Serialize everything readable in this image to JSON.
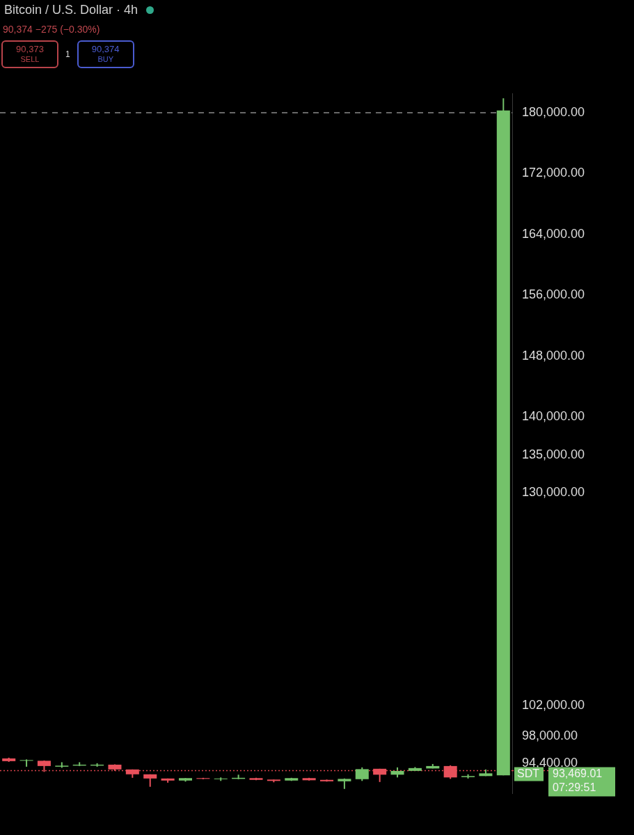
{
  "chart_data": {
    "type": "candlestick",
    "title": "Bitcoin / U.S. Dollar · 4h",
    "subtitle": "90,374 −275 (−0.30%)",
    "categories": [
      null,
      null,
      null,
      null,
      null,
      null,
      null,
      null,
      null,
      null,
      null,
      null,
      null,
      null,
      null,
      null,
      null,
      null,
      null,
      null,
      null,
      null,
      null,
      null,
      null,
      null,
      null,
      null,
      null
    ],
    "ohlc": [
      [
        95080,
        95180,
        94630,
        94720
      ],
      [
        94770,
        94950,
        93990,
        94860
      ],
      [
        94770,
        94810,
        93310,
        94080
      ],
      [
        93990,
        94580,
        93850,
        94130
      ],
      [
        94130,
        94580,
        94080,
        94260
      ],
      [
        94130,
        94450,
        93990,
        94260
      ],
      [
        94260,
        94300,
        93440,
        93630
      ],
      [
        93630,
        93630,
        92530,
        92990
      ],
      [
        92990,
        92990,
        91350,
        92440
      ],
      [
        92440,
        92440,
        91890,
        92170
      ],
      [
        92170,
        92490,
        92030,
        92490
      ],
      [
        92490,
        92530,
        92350,
        92390
      ],
      [
        92350,
        92580,
        92120,
        92440
      ],
      [
        92390,
        92940,
        92350,
        92530
      ],
      [
        92490,
        92530,
        92210,
        92260
      ],
      [
        92300,
        92300,
        91940,
        92120
      ],
      [
        92170,
        92530,
        92120,
        92490
      ],
      [
        92490,
        92530,
        92170,
        92210
      ],
      [
        92260,
        92300,
        92030,
        92070
      ],
      [
        92070,
        92440,
        91070,
        92390
      ],
      [
        92350,
        93900,
        92120,
        93670
      ],
      [
        93720,
        93720,
        91980,
        92940
      ],
      [
        92940,
        93900,
        92580,
        93440
      ],
      [
        93440,
        93940,
        93440,
        93810
      ],
      [
        93760,
        94350,
        93760,
        94080
      ],
      [
        94080,
        94170,
        92390,
        92580
      ],
      [
        92620,
        92990,
        92440,
        92760
      ],
      [
        92760,
        93630,
        92760,
        93120
      ],
      [
        92850,
        181900,
        92850,
        180300
      ]
    ],
    "colors": [
      "#e8505b",
      "#74c26a",
      "#e8505b",
      "#74c26a",
      "#74c26a",
      "#74c26a",
      "#e8505b",
      "#e8505b",
      "#e8505b",
      "#e8505b",
      "#74c26a",
      "#e8505b",
      "#74c26a",
      "#74c26a",
      "#e8505b",
      "#e8505b",
      "#74c26a",
      "#e8505b",
      "#e8505b",
      "#74c26a",
      "#74c26a",
      "#e8505b",
      "#74c26a",
      "#74c26a",
      "#74c26a",
      "#e8505b",
      "#74c26a",
      "#74c26a",
      "#74c26a"
    ],
    "ylim": [
      90500,
      182500
    ],
    "yticks": [
      {
        "value": 94400,
        "label": "94,400.00"
      },
      {
        "value": 98000,
        "label": "98,000.00"
      },
      {
        "value": 102000,
        "label": "102,000.00"
      },
      {
        "value": 130000,
        "label": "130,000.00"
      },
      {
        "value": 135000,
        "label": "135,000.00"
      },
      {
        "value": 140000,
        "label": "140,000.00"
      },
      {
        "value": 148000,
        "label": "148,000.00"
      },
      {
        "value": 156000,
        "label": "156,000.00"
      },
      {
        "value": 164000,
        "label": "164,000.00"
      },
      {
        "value": 172000,
        "label": "172,000.00"
      },
      {
        "value": 180000,
        "label": "180,000.00"
      }
    ],
    "tick_labels": "y",
    "ref_lines": [
      {
        "axis": "y",
        "value": 180000,
        "color": "#8a8a8a",
        "line_style": "dashed"
      },
      {
        "axis": "y",
        "value": 93469.01,
        "label": "93,469.01",
        "color": "#d9434b",
        "line_style": "dotted"
      }
    ],
    "annotations": [
      "90,373",
      "SELL",
      "1",
      "90,374",
      "BUY",
      "SDT",
      "07:29:51"
    ]
  }
}
